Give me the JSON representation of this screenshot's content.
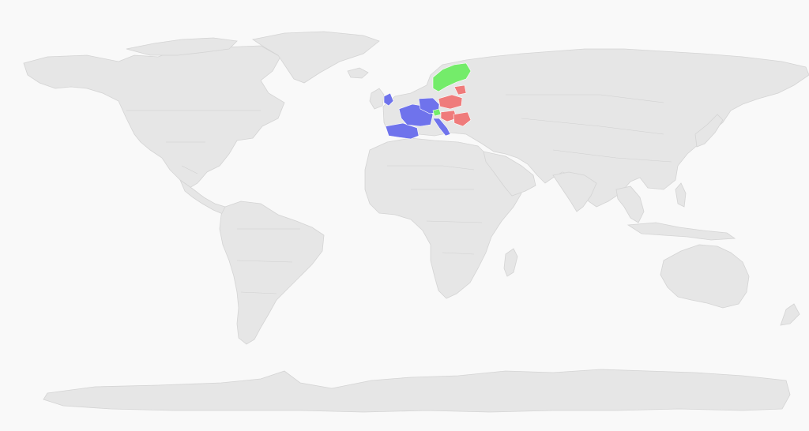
{
  "map": {
    "colors": {
      "background": "#f9f9f9",
      "land": "#e6e6e6",
      "border": "#d0d0d0"
    },
    "highlight_groups": [
      {
        "key": "western_europe",
        "color": "#6f73ec"
      },
      {
        "key": "eastern_europe",
        "color": "#ef7b7b"
      },
      {
        "key": "northern_europe",
        "color": "#74ec6a"
      }
    ]
  }
}
